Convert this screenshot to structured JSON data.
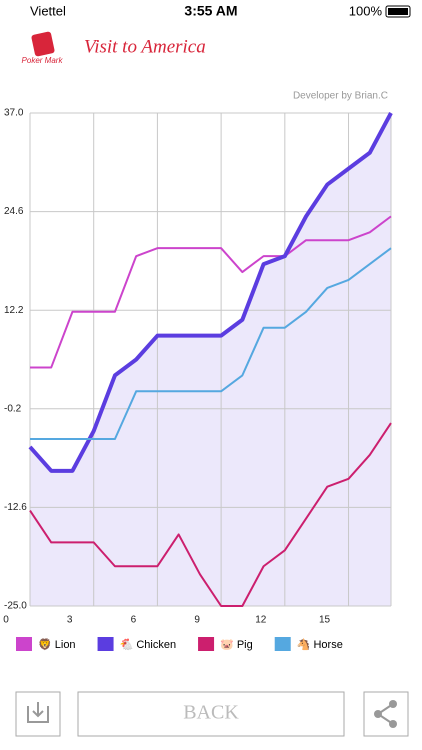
{
  "status_bar": {
    "carrier": "Viettel",
    "time": "3:55 AM",
    "battery": "100%"
  },
  "header": {
    "logo_text": "Poker Mark",
    "title": "Visit to America"
  },
  "credit": "Developer by Brian.C",
  "chart_data": {
    "type": "line",
    "x": [
      0,
      1,
      2,
      3,
      4,
      5,
      6,
      7,
      8,
      9,
      10,
      11,
      12,
      13,
      14,
      15,
      16,
      17
    ],
    "xlim": [
      0,
      17
    ],
    "xticks": [
      0,
      3,
      6,
      9,
      12,
      15
    ],
    "ylim": [
      -25,
      37
    ],
    "yticks": [
      {
        "value": 37,
        "label": "37.0"
      },
      24.6,
      12.2,
      -0.2,
      -12.6,
      {
        "value": -25,
        "label": "-25.0"
      }
    ],
    "grid": true,
    "series": [
      {
        "name": "🦁 Lion",
        "color": "#cc44cc",
        "values": [
          5,
          5,
          12,
          12,
          12,
          19,
          20,
          20,
          20,
          20,
          17,
          19,
          19,
          21,
          21,
          21,
          22,
          24
        ]
      },
      {
        "name": "🐔 Chicken",
        "color": "#5b3de0",
        "fill": "#ece8fb",
        "values": [
          -5,
          -8,
          -8,
          -3,
          4,
          6,
          9,
          9,
          9,
          9,
          11,
          18,
          19,
          24,
          28,
          30,
          32,
          37
        ]
      },
      {
        "name": "🐷 Pig",
        "color": "#cc1f6e",
        "values": [
          -13,
          -17,
          -17,
          -17,
          -20,
          -20,
          -20,
          -16,
          -21,
          -25,
          -25,
          -20,
          -18,
          -14,
          -10,
          -9,
          -6,
          -2
        ]
      },
      {
        "name": "🐴 Horse",
        "color": "#55a8e0",
        "values": [
          -4,
          -4,
          -4,
          -4,
          -4,
          2,
          2,
          2,
          2,
          2,
          4,
          10,
          10,
          12,
          15,
          16,
          18,
          20
        ]
      }
    ]
  },
  "back_button": "BACK"
}
